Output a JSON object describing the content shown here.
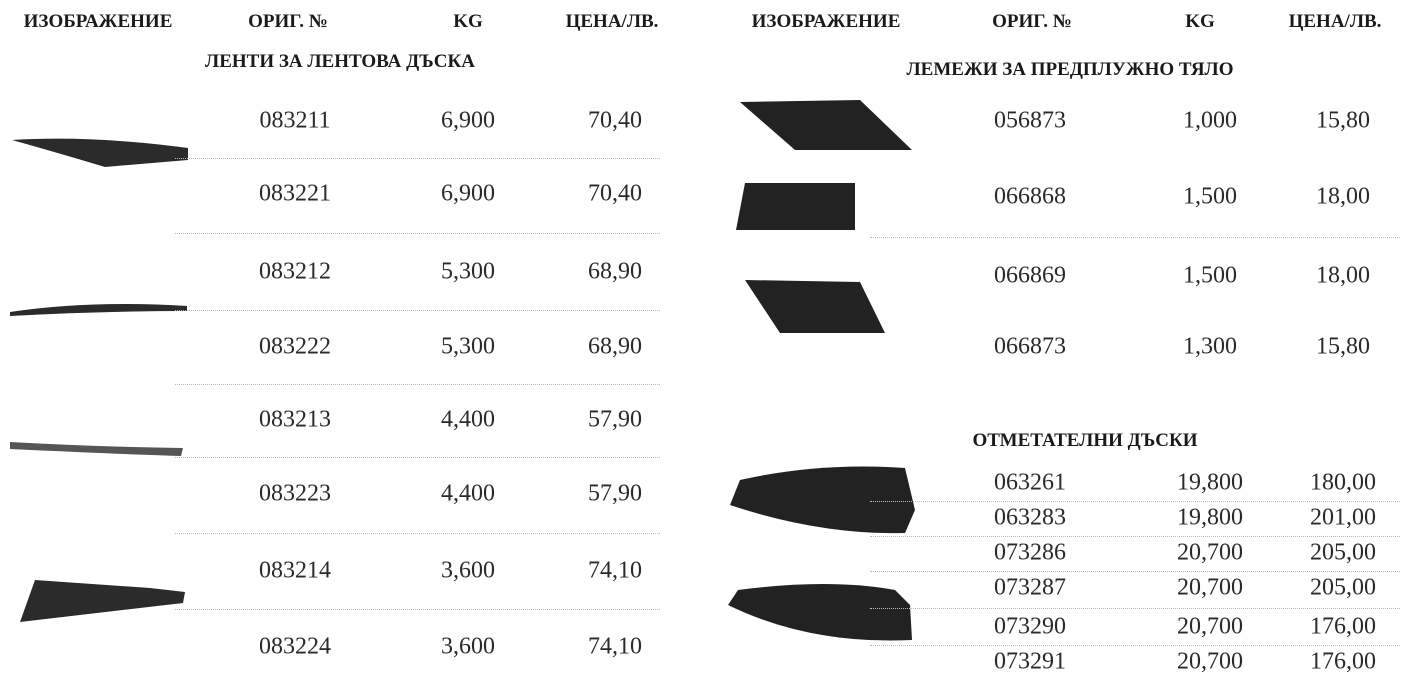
{
  "left": {
    "headers": [
      "ИЗОБРАЖЕНИЕ",
      "ОРИГ. №",
      "KG",
      "ЦЕНА/ЛВ."
    ],
    "sections": [
      {
        "title": "ЛЕНТИ ЗА ЛЕНТОВА ДЪСКА",
        "rows": [
          [
            "083211",
            "6,900",
            "70,40"
          ],
          [
            "083221",
            "6,900",
            "70,40"
          ],
          [
            "083212",
            "5,300",
            "68,90"
          ],
          [
            "083222",
            "5,300",
            "68,90"
          ],
          [
            "083213",
            "4,400",
            "57,90"
          ],
          [
            "083223",
            "4,400",
            "57,90"
          ],
          [
            "083214",
            "3,600",
            "74,10"
          ],
          [
            "083224",
            "3,600",
            "74,10"
          ]
        ]
      }
    ]
  },
  "right": {
    "headers": [
      "ИЗОБРАЖЕНИЕ",
      "ОРИГ. №",
      "KG",
      "ЦЕНА/ЛВ."
    ],
    "sections": [
      {
        "title": "ЛЕМЕЖИ ЗА ПРЕДПЛУЖНО ТЯЛО",
        "rows": [
          [
            "056873",
            "1,000",
            "15,80"
          ],
          [
            "066868",
            "1,500",
            "18,00"
          ],
          [
            "066869",
            "1,500",
            "18,00"
          ],
          [
            "066873",
            "1,300",
            "15,80"
          ]
        ]
      },
      {
        "title": "ОТМЕТАТЕЛНИ ДЪСКИ",
        "rows": [
          [
            "063261",
            "19,800",
            "180,00"
          ],
          [
            "063283",
            "19,800",
            "201,00"
          ],
          [
            "073286",
            "20,700",
            "205,00"
          ],
          [
            "073287",
            "20,700",
            "205,00"
          ],
          [
            "073290",
            "20,700",
            "176,00"
          ],
          [
            "073291",
            "20,700",
            "176,00"
          ]
        ]
      }
    ]
  }
}
